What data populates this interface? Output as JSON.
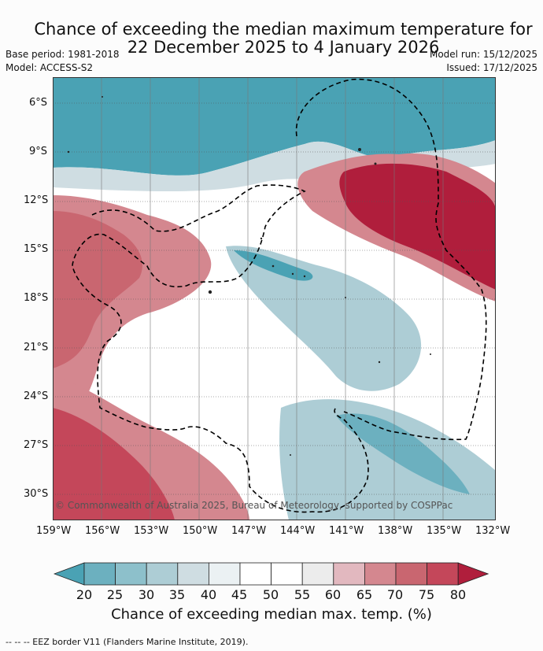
{
  "title": {
    "line1": "Chance of exceeding the median maximum temperature for",
    "line2": "22 December 2025 to 4 January 2026"
  },
  "meta": {
    "base_period": "Base period: 1981-2018",
    "model": "Model: ACCESS-S2",
    "model_run": "Model run: 15/12/2025",
    "issued": "Issued: 17/12/2025"
  },
  "axes": {
    "lat_labels": [
      "6°S",
      "9°S",
      "12°S",
      "15°S",
      "18°S",
      "21°S",
      "24°S",
      "27°S",
      "30°S"
    ],
    "lon_labels": [
      "159°W",
      "156°W",
      "153°W",
      "150°W",
      "147°W",
      "144°W",
      "141°W",
      "138°W",
      "135°W",
      "132°W"
    ]
  },
  "copyright": "© Commonwealth of Australia 2025, Bureau of Meteorology, supported by COSPPac",
  "colorbar": {
    "ticks": [
      "20",
      "25",
      "30",
      "35",
      "40",
      "45",
      "50",
      "55",
      "60",
      "65",
      "70",
      "75",
      "80"
    ],
    "label": "Chance of exceeding median max. temp. (%)",
    "colors": [
      "#4aa2b4",
      "#6cb0bf",
      "#8dc0cb",
      "#adcdd5",
      "#cfdde2",
      "#ebf1f3",
      "#ffffff",
      "#ffffff",
      "#ececec",
      "#e2b8bf",
      "#d4878f",
      "#c96670",
      "#c4475a",
      "#b01e3c"
    ]
  },
  "footer": "--  --  -- EEZ border V11 (Flanders Marine Institute, 2019)."
}
